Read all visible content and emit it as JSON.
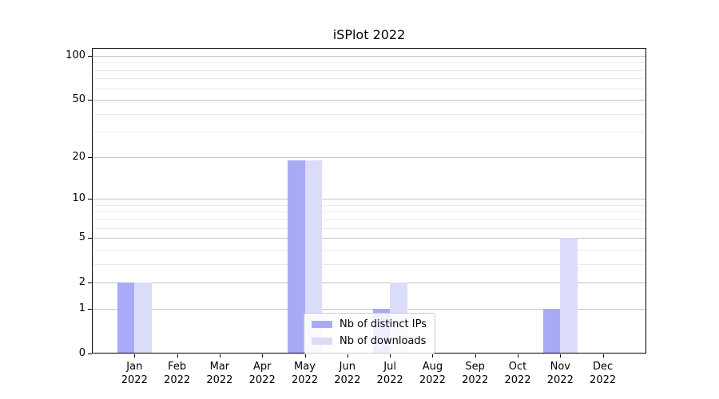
{
  "chart_data": {
    "type": "bar",
    "title": "iSPlot 2022",
    "scale": "log1p",
    "xlabel": "",
    "ylabel": "",
    "ylim": [
      0,
      113
    ],
    "grid": "horizontal",
    "legend_position": "lower center",
    "categories": [
      {
        "month": "Jan",
        "year": "2022"
      },
      {
        "month": "Feb",
        "year": "2022"
      },
      {
        "month": "Mar",
        "year": "2022"
      },
      {
        "month": "Apr",
        "year": "2022"
      },
      {
        "month": "May",
        "year": "2022"
      },
      {
        "month": "Jun",
        "year": "2022"
      },
      {
        "month": "Jul",
        "year": "2022"
      },
      {
        "month": "Aug",
        "year": "2022"
      },
      {
        "month": "Sep",
        "year": "2022"
      },
      {
        "month": "Oct",
        "year": "2022"
      },
      {
        "month": "Nov",
        "year": "2022"
      },
      {
        "month": "Dec",
        "year": "2022"
      }
    ],
    "series": [
      {
        "name": "Nb of distinct IPs",
        "color": "#a8aaf6",
        "values": [
          2,
          0,
          0,
          0,
          19,
          0,
          1,
          0,
          0,
          0,
          1,
          0
        ]
      },
      {
        "name": "Nb of downloads",
        "color": "#dbdcfa",
        "values": [
          2,
          0,
          0,
          0,
          19,
          0,
          2,
          0,
          0,
          0,
          5,
          0
        ]
      }
    ],
    "y_axis": {
      "tick_values": [
        0,
        1,
        2,
        5,
        10,
        20,
        50,
        100
      ],
      "tick_labels": [
        "0",
        "1",
        "2",
        "5",
        "10",
        "20",
        "50",
        "100"
      ],
      "minor_gridlines": [
        1,
        2,
        3,
        4,
        5,
        6,
        7,
        8,
        9,
        10,
        20,
        30,
        40,
        50,
        60,
        70,
        80,
        90,
        100
      ],
      "major_gridlines": [
        1,
        2,
        5,
        10,
        20,
        50,
        100
      ]
    },
    "colors": {
      "grid_minor": "#ebebeb",
      "grid_major": "#c4c4c4",
      "spine": "#000000",
      "background": "#ffffff",
      "text": "#000000"
    }
  }
}
